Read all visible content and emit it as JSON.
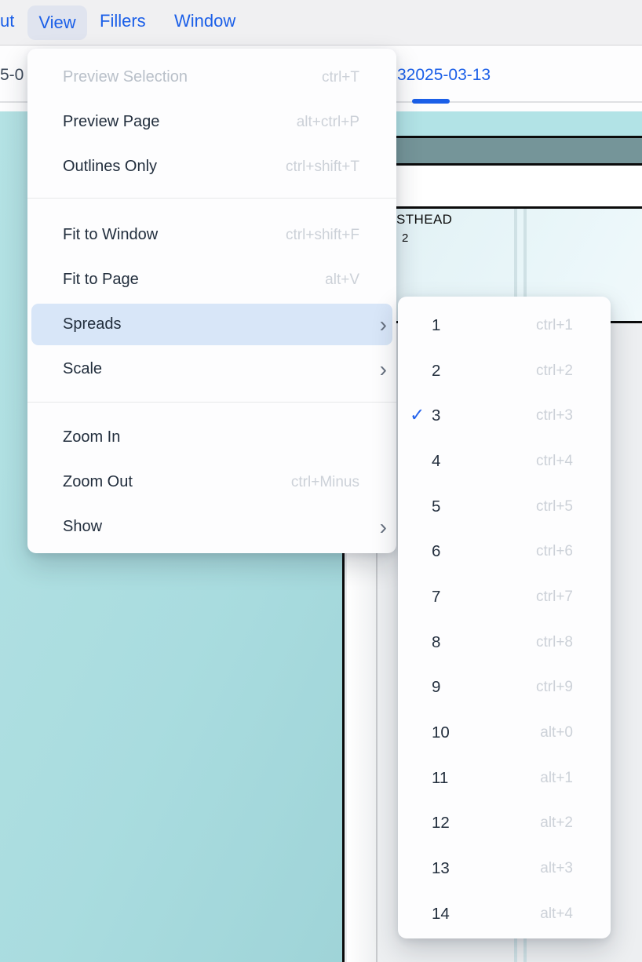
{
  "menubar": {
    "items": [
      {
        "label": "ut"
      },
      {
        "label": "View",
        "active": true
      },
      {
        "label": "Fillers"
      },
      {
        "label": "Window"
      }
    ]
  },
  "tabbar": {
    "left_tab_partial": "5-0",
    "active_tab_label": "32025-03-13"
  },
  "view_menu": {
    "items": [
      {
        "label": "Preview Selection",
        "shortcut": "ctrl+T",
        "disabled": true
      },
      {
        "label": "Preview Page",
        "shortcut": "alt+ctrl+P"
      },
      {
        "label": "Outlines Only",
        "shortcut": "ctrl+shift+T"
      },
      {
        "label": "Fit to Window",
        "shortcut": "ctrl+shift+F"
      },
      {
        "label": "Fit to Page",
        "shortcut": "alt+V"
      },
      {
        "label": "Spreads",
        "submenu": true,
        "highlighted": true
      },
      {
        "label": "Scale",
        "submenu": true
      },
      {
        "label": "Zoom In",
        "shortcut": ""
      },
      {
        "label": "Zoom Out",
        "shortcut": "ctrl+Minus"
      },
      {
        "label": "Show",
        "submenu": true
      }
    ]
  },
  "spreads_submenu": {
    "items": [
      {
        "label": "1",
        "shortcut": "ctrl+1"
      },
      {
        "label": "2",
        "shortcut": "ctrl+2"
      },
      {
        "label": "3",
        "shortcut": "ctrl+3",
        "checked": true
      },
      {
        "label": "4",
        "shortcut": "ctrl+4"
      },
      {
        "label": "5",
        "shortcut": "ctrl+5"
      },
      {
        "label": "6",
        "shortcut": "ctrl+6"
      },
      {
        "label": "7",
        "shortcut": "ctrl+7"
      },
      {
        "label": "8",
        "shortcut": "ctrl+8"
      },
      {
        "label": "9",
        "shortcut": "ctrl+9"
      },
      {
        "label": "10",
        "shortcut": "alt+0"
      },
      {
        "label": "11",
        "shortcut": "alt+1"
      },
      {
        "label": "12",
        "shortcut": "alt+2"
      },
      {
        "label": "13",
        "shortcut": "alt+3"
      },
      {
        "label": "14",
        "shortcut": "alt+4"
      }
    ]
  },
  "document": {
    "masthead_partial": "STHEAD",
    "page_number": "2"
  },
  "icons": {
    "submenu_chevron": "›",
    "checkmark": "✓"
  },
  "colors": {
    "accent_blue": "#1b5fe8",
    "menu_highlight": "#d8e6f8",
    "left_page_teal": "#a9dcdf",
    "band_cyan": "#b2e3e6",
    "band_slate": "#759599",
    "masthead_bg": "#e9f6f9"
  }
}
